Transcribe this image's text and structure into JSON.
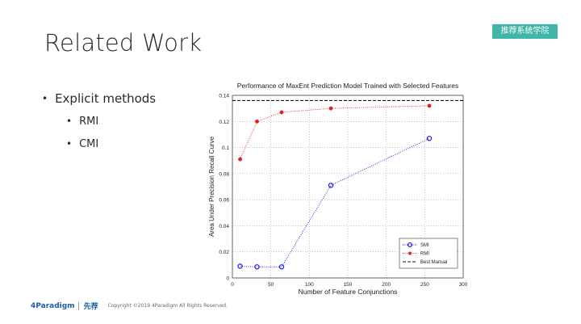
{
  "slide": {
    "title": "Related Work",
    "badge": "推荐系统学院"
  },
  "bullets": {
    "main": "Explicit methods",
    "items": [
      "RMI",
      "CMI"
    ]
  },
  "footer": {
    "logo": "4Paradigm",
    "logo_second": "先荐",
    "copyright": "Copyright ©2019 4Paradigm All Rights Reserved."
  },
  "chart_data": {
    "type": "line",
    "title": "Performance of MaxEnt Prediction Model Trained with Selected Features",
    "xlabel": "Number of Feature Conjunctions",
    "ylabel": "Area Under Precision Recall Curve",
    "xlim": [
      0,
      300
    ],
    "ylim": [
      0,
      0.14
    ],
    "xticks": [
      0,
      50,
      100,
      150,
      200,
      250,
      300
    ],
    "yticks": [
      0,
      0.02,
      0.04,
      0.06,
      0.08,
      0.1,
      0.12,
      0.14
    ],
    "ytick_labels": [
      "0",
      "0.02",
      "0.04",
      "0.06",
      "0.08",
      "0.1",
      "0.12",
      "0.14"
    ],
    "grid": true,
    "legend_position": "bottom-right",
    "series": [
      {
        "name": "SMI",
        "color": "#1a1adb",
        "marker": "circle-open",
        "x": [
          10,
          32,
          64,
          128,
          256
        ],
        "y": [
          0.009,
          0.0085,
          0.0085,
          0.071,
          0.107
        ]
      },
      {
        "name": "RMI",
        "color": "#e02020",
        "marker": "dot",
        "x": [
          10,
          32,
          64,
          128,
          256
        ],
        "y": [
          0.091,
          0.12,
          0.127,
          0.13,
          0.132
        ]
      },
      {
        "name": "Best Manual",
        "color": "#111111",
        "marker": "none",
        "dashed": true,
        "x": [
          0,
          300
        ],
        "y": [
          0.136,
          0.136
        ]
      }
    ]
  }
}
